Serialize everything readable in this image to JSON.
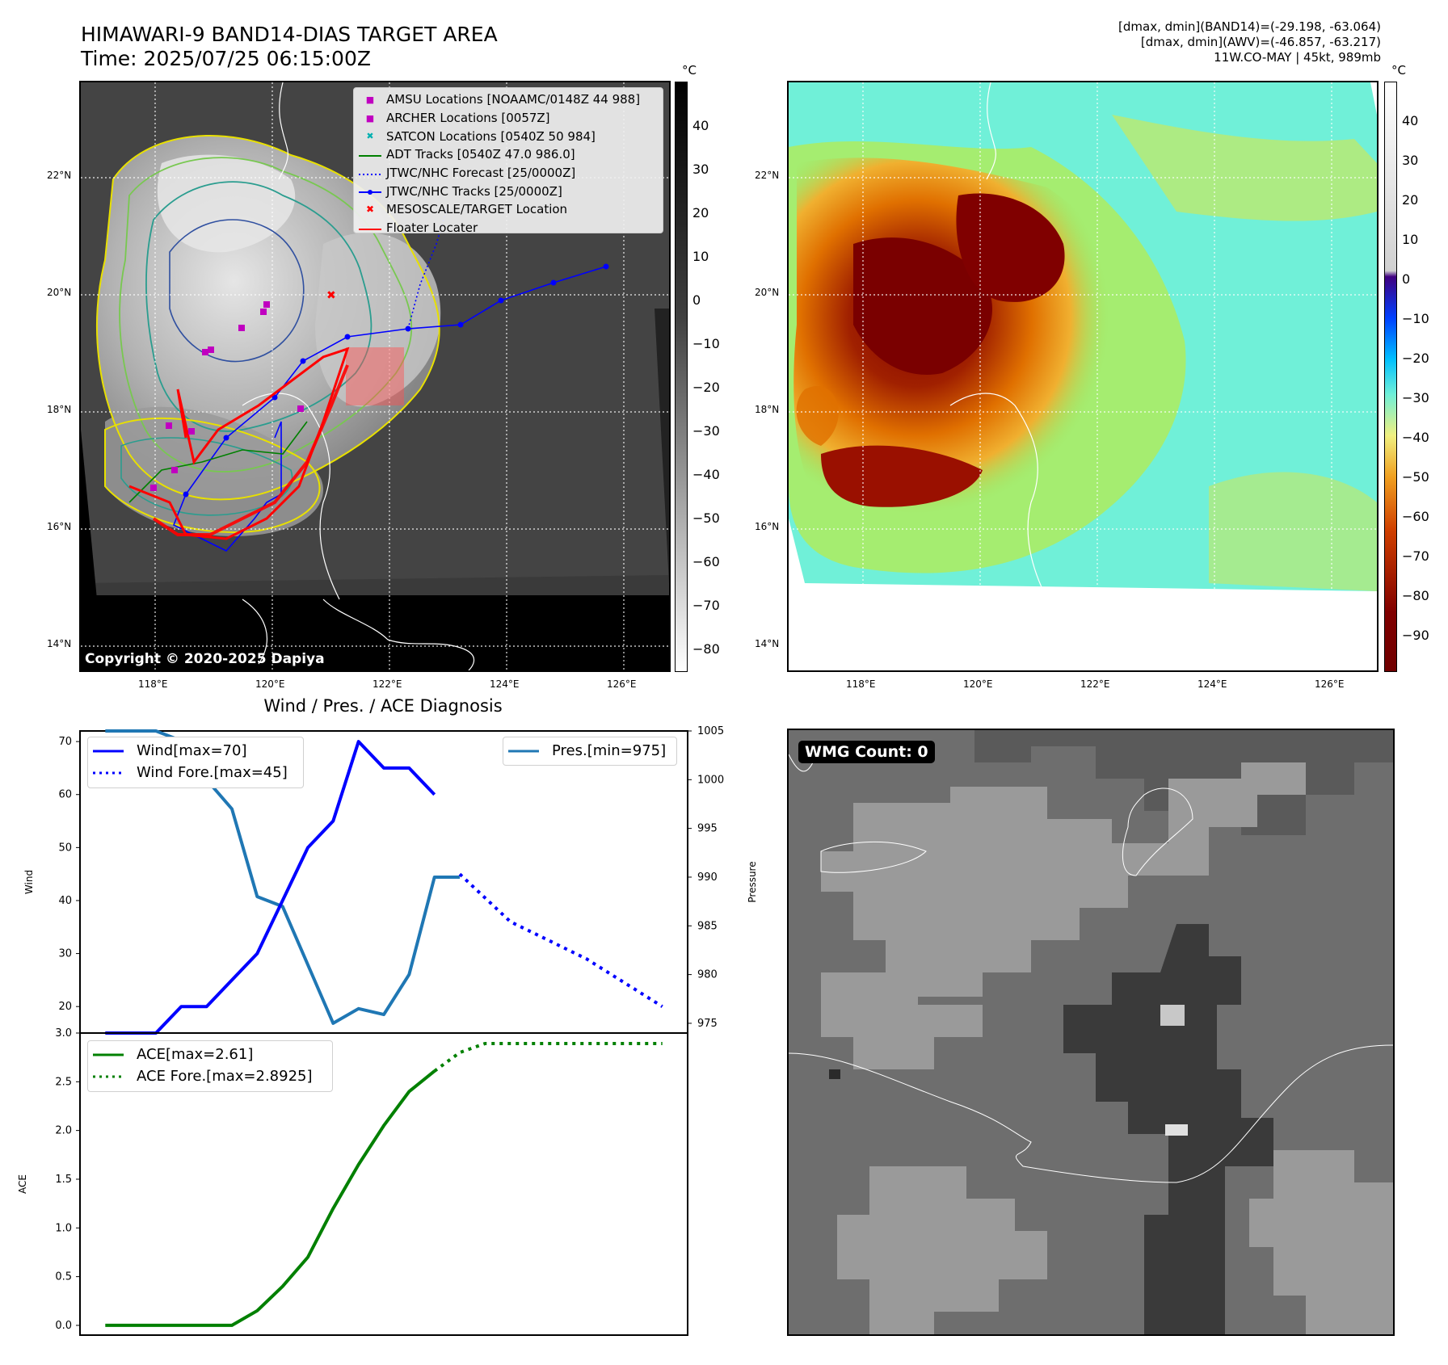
{
  "header": {
    "title_line1": "HIMAWARI-9 BAND14-DIAS TARGET AREA",
    "title_line2": "Time: 2025/07/25 06:15:00Z",
    "info_line1": "[dmax, dmin](BAND14)=(-29.198, -63.064)",
    "info_line2": "[dmax, dmin](AWV)=(-46.857, -63.217)",
    "info_line3": "11W.CO-MAY | 45kt, 989mb"
  },
  "map_axes": {
    "lat_labels": [
      "22°N",
      "20°N",
      "18°N",
      "16°N",
      "14°N"
    ],
    "lon_labels": [
      "118°E",
      "120°E",
      "122°E",
      "124°E",
      "126°E"
    ]
  },
  "ir_panel": {
    "unit": "°C",
    "colorbar_ticks": [
      "40",
      "30",
      "20",
      "10",
      "0",
      "−10",
      "−20",
      "−30",
      "−40",
      "−50",
      "−60",
      "−70",
      "−80"
    ],
    "copyright": "Copyright © 2020-2025 Dapiya",
    "legend": [
      {
        "label": "AMSU Locations [NOAAMC/0148Z 44 988]",
        "symbol": "■",
        "color": "#c000c0"
      },
      {
        "label": "ARCHER Locations [0057Z]",
        "symbol": "■",
        "color": "#c000c0"
      },
      {
        "label": "SATCON Locations [0540Z 50 984]",
        "symbol": "✖",
        "color": "#00b0b0"
      },
      {
        "label": "ADT Tracks [0540Z 47.0 986.0]",
        "symbol": "line",
        "color": "#008000"
      },
      {
        "label": "JTWC/NHC Forecast [25/0000Z]",
        "symbol": "dotted",
        "color": "#0000ff"
      },
      {
        "label": "JTWC/NHC Tracks [25/0000Z]",
        "symbol": "line-dot",
        "color": "#0000ff"
      },
      {
        "label": "MESOSCALE/TARGET Location",
        "symbol": "✖",
        "color": "#ff0000"
      },
      {
        "label": "Floater Locater",
        "symbol": "line",
        "color": "#ff0000"
      }
    ]
  },
  "color_panel": {
    "unit": "°C",
    "colorbar_ticks": [
      "40",
      "30",
      "20",
      "10",
      "0",
      "−10",
      "−20",
      "−30",
      "−40",
      "−50",
      "−60",
      "−70",
      "−80",
      "−90"
    ]
  },
  "diag_panel": {
    "title": "Wind / Pres. / ACE Diagnosis",
    "wind_ylabel": "Wind",
    "pres_ylabel": "Pressure",
    "ace_ylabel": "ACE",
    "wind_ticks": [
      "70",
      "60",
      "50",
      "40",
      "30",
      "20"
    ],
    "pres_ticks": [
      "1005",
      "1000",
      "995",
      "990",
      "985",
      "980",
      "975"
    ],
    "ace_ticks": [
      "3.0",
      "2.5",
      "2.0",
      "1.5",
      "1.0",
      "0.5",
      "0.0"
    ],
    "legend_wind": [
      "Wind[max=70]",
      "Wind Fore.[max=45]"
    ],
    "legend_pres": [
      "Pres.[min=975]"
    ],
    "legend_ace": [
      "ACE[max=2.61]",
      "ACE Fore.[max=2.8925]"
    ]
  },
  "wmg_panel": {
    "badge": "WMG Count: 0"
  },
  "chart_data": [
    {
      "type": "line",
      "title": "Wind / Pres. / ACE Diagnosis",
      "ylabel": "Wind",
      "ylim": [
        15,
        72
      ],
      "x": [
        0,
        1,
        2,
        3,
        4,
        5,
        6,
        7,
        8,
        9,
        10,
        11,
        12,
        13,
        14,
        15,
        16,
        17,
        18,
        19,
        20,
        21,
        22
      ],
      "series": [
        {
          "name": "Wind[max=70]",
          "color": "#0000ff",
          "style": "solid",
          "x": [
            0,
            2,
            3,
            4,
            5,
            6,
            7,
            8,
            9,
            10,
            11,
            12,
            13
          ],
          "values": [
            15,
            15,
            20,
            20,
            25,
            30,
            40,
            50,
            55,
            70,
            65,
            65,
            60
          ]
        },
        {
          "name": "Wind Fore.[max=45]",
          "color": "#0000ff",
          "style": "dotted",
          "x": [
            14,
            16,
            19,
            22
          ],
          "values": [
            45,
            36,
            29,
            20
          ]
        }
      ]
    },
    {
      "type": "line",
      "ylabel": "Pressure",
      "ylim": [
        974,
        1005
      ],
      "series": [
        {
          "name": "Pres.[min=975]",
          "color": "#1f77b4",
          "style": "solid",
          "x": [
            0,
            1,
            2,
            3,
            4,
            5,
            6,
            7,
            8,
            9,
            10,
            11,
            12,
            13,
            14
          ],
          "values": [
            1005,
            1005,
            1005,
            1004,
            1000,
            997,
            988,
            987,
            981,
            975,
            976.5,
            975.9,
            980,
            990,
            990
          ]
        }
      ]
    },
    {
      "type": "line",
      "ylabel": "ACE",
      "ylim": [
        -0.1,
        3.0
      ],
      "series": [
        {
          "name": "ACE[max=2.61]",
          "color": "#008000",
          "style": "solid",
          "x": [
            0,
            1,
            2,
            3,
            4,
            5,
            6,
            7,
            8,
            9,
            10,
            11,
            12,
            13
          ],
          "values": [
            0,
            0,
            0,
            0,
            0,
            0,
            0.15,
            0.4,
            0.7,
            1.2,
            1.65,
            2.05,
            2.4,
            2.61
          ]
        },
        {
          "name": "ACE Fore.[max=2.8925]",
          "color": "#008000",
          "style": "dotted",
          "x": [
            13,
            14,
            15,
            18,
            22
          ],
          "values": [
            2.61,
            2.8,
            2.8925,
            2.8925,
            2.8925
          ]
        }
      ]
    }
  ]
}
